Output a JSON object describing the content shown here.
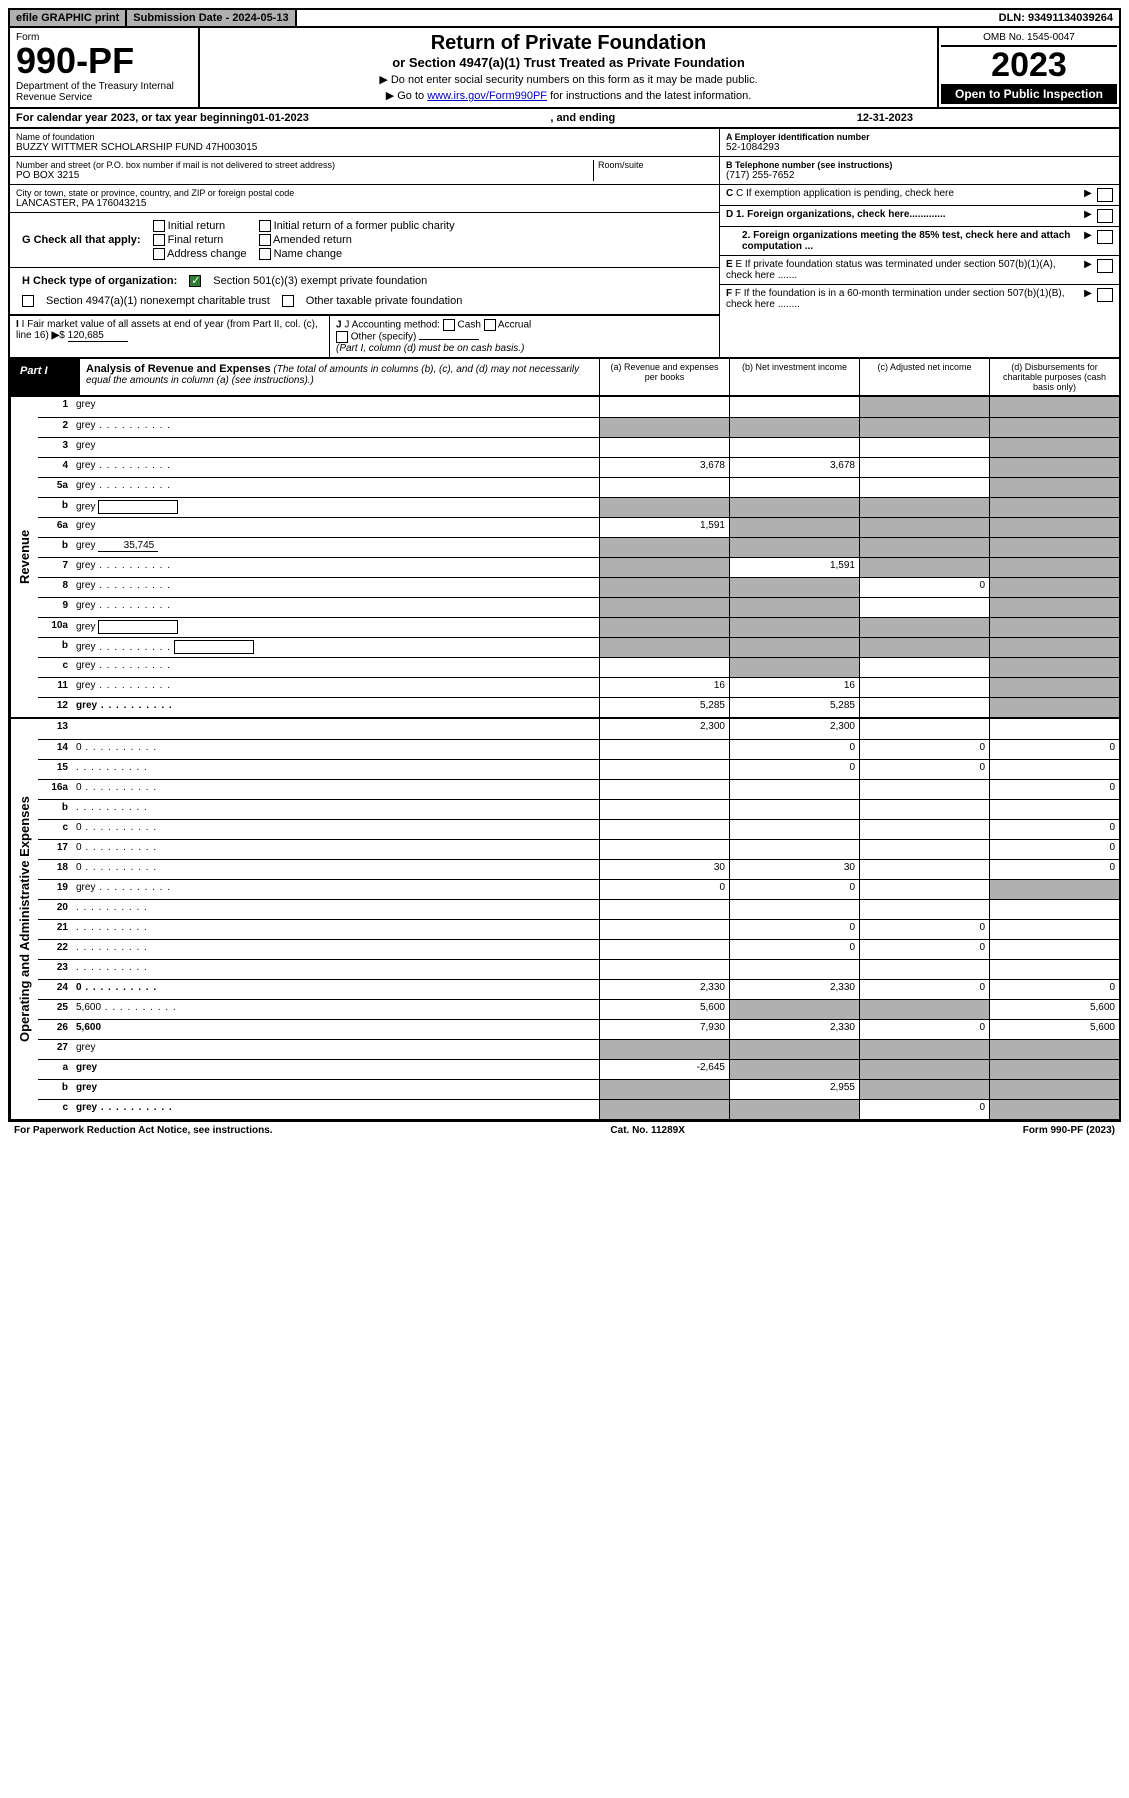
{
  "topbar": {
    "efile": "efile GRAPHIC print",
    "subdate_label": "Submission Date - 2024-05-13",
    "dln": "DLN: 93491134039264"
  },
  "header": {
    "form_label": "Form",
    "form_num": "990-PF",
    "dept": "Department of the Treasury\nInternal Revenue Service",
    "title": "Return of Private Foundation",
    "subtitle": "or Section 4947(a)(1) Trust Treated as Private Foundation",
    "note1": "▶ Do not enter social security numbers on this form as it may be made public.",
    "note2_pre": "▶ Go to ",
    "note2_link": "www.irs.gov/Form990PF",
    "note2_post": " for instructions and the latest information.",
    "omb": "OMB No. 1545-0047",
    "year": "2023",
    "inspect": "Open to Public Inspection"
  },
  "calyear": {
    "pre": "For calendar year 2023, or tax year beginning ",
    "begin": "01-01-2023",
    "mid": ", and ending ",
    "end": "12-31-2023"
  },
  "info": {
    "name_lbl": "Name of foundation",
    "name": "BUZZY WITTMER SCHOLARSHIP FUND 47H003015",
    "ein_lbl": "A Employer identification number",
    "ein": "52-1084293",
    "addr_lbl": "Number and street (or P.O. box number if mail is not delivered to street address)",
    "room_lbl": "Room/suite",
    "addr": "PO BOX 3215",
    "tel_lbl": "B Telephone number (see instructions)",
    "tel": "(717) 255-7652",
    "city_lbl": "City or town, state or province, country, and ZIP or foreign postal code",
    "city": "LANCASTER, PA  176043215",
    "c_lbl": "C If exemption application is pending, check here",
    "g_lbl": "G Check all that apply:",
    "g_opts": [
      "Initial return",
      "Initial return of a former public charity",
      "Final return",
      "Amended return",
      "Address change",
      "Name change"
    ],
    "d1": "D 1. Foreign organizations, check here.............",
    "d2": "2. Foreign organizations meeting the 85% test, check here and attach computation ...",
    "h_lbl": "H Check type of organization:",
    "h1": "Section 501(c)(3) exempt private foundation",
    "h2": "Section 4947(a)(1) nonexempt charitable trust",
    "h3": "Other taxable private foundation",
    "e_lbl": "E  If private foundation status was terminated under section 507(b)(1)(A), check here .......",
    "i_lbl": "I Fair market value of all assets at end of year (from Part II, col. (c), line 16)",
    "i_val": "120,685",
    "j_lbl": "J Accounting method:",
    "j_opts": [
      "Cash",
      "Accrual"
    ],
    "j_other": "Other (specify)",
    "j_note": "(Part I, column (d) must be on cash basis.)",
    "f_lbl": "F  If the foundation is in a 60-month termination under section 507(b)(1)(B), check here ........"
  },
  "part1": {
    "label": "Part I",
    "title": "Analysis of Revenue and Expenses",
    "desc": "(The total of amounts in columns (b), (c), and (d) may not necessarily equal the amounts in column (a) (see instructions).)",
    "cols": {
      "a": "(a)   Revenue and expenses per books",
      "b": "(b)   Net investment income",
      "c": "(c)   Adjusted net income",
      "d": "(d)   Disbursements for charitable purposes (cash basis only)"
    }
  },
  "sections": {
    "revenue": "Revenue",
    "opex": "Operating and Administrative Expenses"
  },
  "rows": [
    {
      "n": "1",
      "d": "grey",
      "a": "",
      "b": "",
      "c": "grey"
    },
    {
      "n": "2",
      "d": "grey",
      "dots": true,
      "a": "grey",
      "b": "grey",
      "c": "grey"
    },
    {
      "n": "3",
      "d": "grey",
      "a": "",
      "b": "",
      "c": ""
    },
    {
      "n": "4",
      "d": "grey",
      "dots": true,
      "a": "3,678",
      "b": "3,678",
      "c": ""
    },
    {
      "n": "5a",
      "d": "grey",
      "dots": true,
      "a": "",
      "b": "",
      "c": ""
    },
    {
      "n": "b",
      "d": "grey",
      "inline_box": true,
      "a": "grey",
      "b": "grey",
      "c": "grey"
    },
    {
      "n": "6a",
      "d": "grey",
      "a": "1,591",
      "b": "grey",
      "c": "grey"
    },
    {
      "n": "b",
      "d": "grey",
      "inline_val": "35,745",
      "a": "grey",
      "b": "grey",
      "c": "grey"
    },
    {
      "n": "7",
      "d": "grey",
      "dots": true,
      "a": "grey",
      "b": "1,591",
      "c": "grey"
    },
    {
      "n": "8",
      "d": "grey",
      "dots": true,
      "a": "grey",
      "b": "grey",
      "c": "0"
    },
    {
      "n": "9",
      "d": "grey",
      "dots": true,
      "a": "grey",
      "b": "grey",
      "c": ""
    },
    {
      "n": "10a",
      "d": "grey",
      "inline_box": true,
      "a": "grey",
      "b": "grey",
      "c": "grey"
    },
    {
      "n": "b",
      "d": "grey",
      "dots": true,
      "inline_box": true,
      "a": "grey",
      "b": "grey",
      "c": "grey"
    },
    {
      "n": "c",
      "d": "grey",
      "dots": true,
      "a": "",
      "b": "grey",
      "c": ""
    },
    {
      "n": "11",
      "d": "grey",
      "dots": true,
      "a": "16",
      "b": "16",
      "c": ""
    },
    {
      "n": "12",
      "d": "grey",
      "bold": true,
      "dots": true,
      "a": "5,285",
      "b": "5,285",
      "c": ""
    }
  ],
  "oprows": [
    {
      "n": "13",
      "d": "",
      "a": "2,300",
      "b": "2,300",
      "c": ""
    },
    {
      "n": "14",
      "d": "0",
      "dots": true,
      "a": "",
      "b": "0",
      "c": "0"
    },
    {
      "n": "15",
      "d": "",
      "dots": true,
      "a": "",
      "b": "0",
      "c": "0"
    },
    {
      "n": "16a",
      "d": "0",
      "dots": true,
      "a": "",
      "b": "",
      "c": ""
    },
    {
      "n": "b",
      "d": "",
      "dots": true,
      "a": "",
      "b": "",
      "c": ""
    },
    {
      "n": "c",
      "d": "0",
      "dots": true,
      "a": "",
      "b": "",
      "c": ""
    },
    {
      "n": "17",
      "d": "0",
      "dots": true,
      "a": "",
      "b": "",
      "c": ""
    },
    {
      "n": "18",
      "d": "0",
      "dots": true,
      "a": "30",
      "b": "30",
      "c": ""
    },
    {
      "n": "19",
      "d": "grey",
      "dots": true,
      "a": "0",
      "b": "0",
      "c": ""
    },
    {
      "n": "20",
      "d": "",
      "dots": true,
      "a": "",
      "b": "",
      "c": ""
    },
    {
      "n": "21",
      "d": "",
      "dots": true,
      "a": "",
      "b": "0",
      "c": "0"
    },
    {
      "n": "22",
      "d": "",
      "dots": true,
      "a": "",
      "b": "0",
      "c": "0"
    },
    {
      "n": "23",
      "d": "",
      "dots": true,
      "a": "",
      "b": "",
      "c": ""
    },
    {
      "n": "24",
      "d": "0",
      "bold": true,
      "dots": true,
      "a": "2,330",
      "b": "2,330",
      "c": "0"
    },
    {
      "n": "25",
      "d": "5,600",
      "dots": true,
      "a": "5,600",
      "b": "grey",
      "c": "grey"
    },
    {
      "n": "26",
      "d": "5,600",
      "bold": true,
      "a": "7,930",
      "b": "2,330",
      "c": "0"
    },
    {
      "n": "27",
      "d": "grey",
      "a": "grey",
      "b": "grey",
      "c": "grey"
    },
    {
      "n": "a",
      "d": "grey",
      "bold": true,
      "a": "-2,645",
      "b": "grey",
      "c": "grey"
    },
    {
      "n": "b",
      "d": "grey",
      "bold": true,
      "a": "grey",
      "b": "2,955",
      "c": "grey"
    },
    {
      "n": "c",
      "d": "grey",
      "bold": true,
      "dots": true,
      "a": "grey",
      "b": "grey",
      "c": "0"
    }
  ],
  "footer": {
    "left": "For Paperwork Reduction Act Notice, see instructions.",
    "mid": "Cat. No. 11289X",
    "right": "Form 990-PF (2023)"
  }
}
